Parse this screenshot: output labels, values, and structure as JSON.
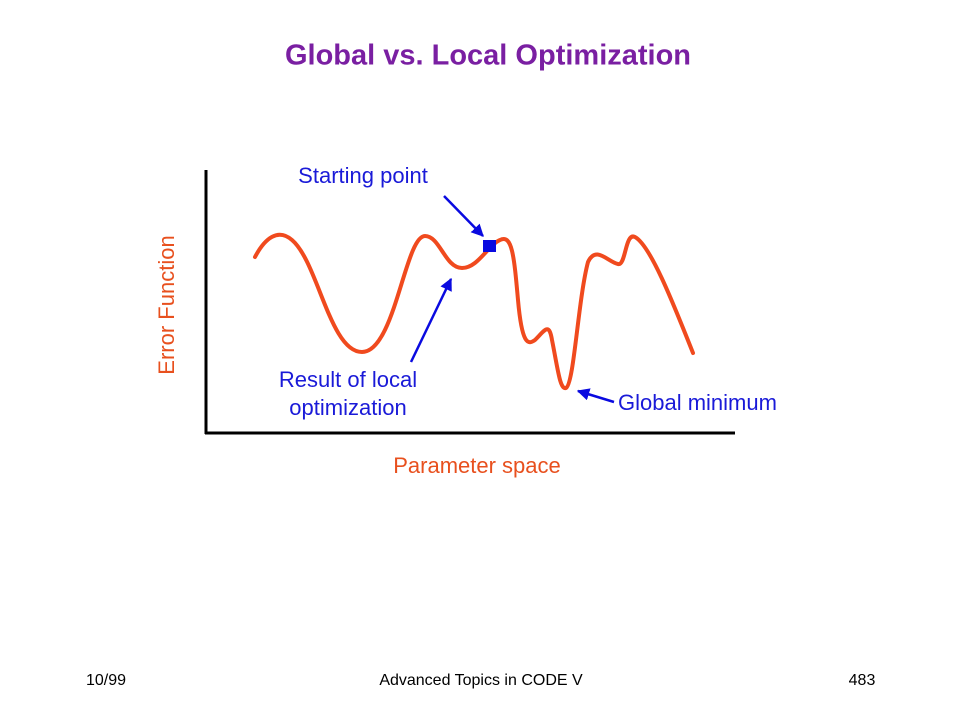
{
  "header": {
    "title": "Global vs. Local Optimization"
  },
  "diagram": {
    "y_axis_label": "Error Function",
    "x_axis_label": "Parameter space",
    "annotations": {
      "starting_point": "Starting point",
      "local_result": [
        "Result of local",
        "optimization"
      ],
      "global_minimum": "Global minimum"
    }
  },
  "footer": {
    "date": "10/99",
    "center": "Advanced Topics in CODE V",
    "page": "483"
  }
}
